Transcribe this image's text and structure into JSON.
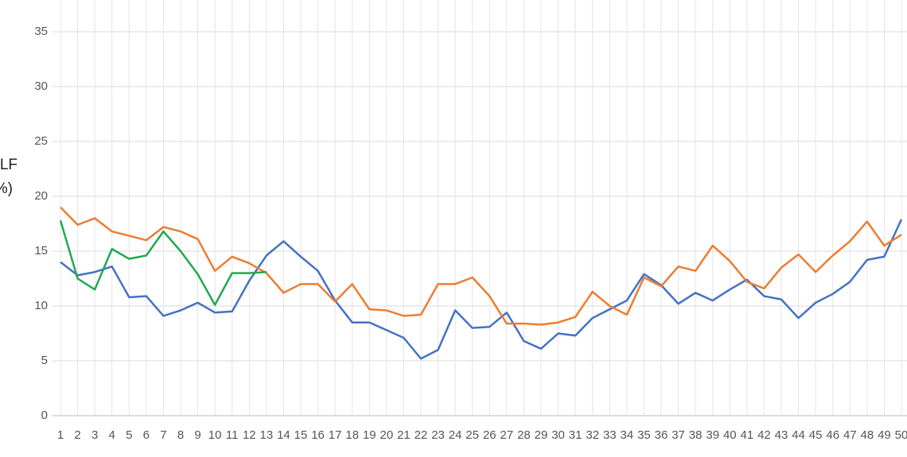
{
  "chart_data": {
    "type": "line",
    "y_label": [
      "CLF",
      "(%)"
    ],
    "categories": [
      1,
      2,
      3,
      4,
      5,
      6,
      7,
      8,
      9,
      10,
      11,
      12,
      13,
      14,
      15,
      16,
      17,
      18,
      19,
      20,
      21,
      22,
      23,
      24,
      25,
      26,
      27,
      28,
      29,
      30,
      31,
      32,
      33,
      34,
      35,
      36,
      37,
      38,
      39,
      40,
      41,
      42,
      43,
      44,
      45,
      46,
      47,
      48,
      49,
      50
    ],
    "series": [
      {
        "color": "#4472c4",
        "values": [
          14.0,
          12.8,
          13.1,
          13.6,
          10.8,
          10.9,
          9.1,
          9.6,
          10.3,
          9.4,
          9.5,
          12.3,
          14.6,
          15.9,
          14.5,
          13.2,
          10.5,
          8.5,
          8.5,
          7.8,
          7.1,
          5.2,
          6.0,
          9.6,
          8.0,
          8.1,
          9.4,
          6.8,
          6.1,
          7.5,
          7.3,
          8.9,
          9.7,
          10.5,
          12.9,
          11.9,
          10.2,
          11.2,
          10.5,
          11.5,
          12.4,
          10.9,
          10.6,
          8.9,
          10.3,
          11.1,
          12.2,
          14.2,
          14.5,
          17.9
        ]
      },
      {
        "color": "#ed7d31",
        "values": [
          19.0,
          17.4,
          18.0,
          16.8,
          16.4,
          16.0,
          17.2,
          16.8,
          16.1,
          13.2,
          14.5,
          13.9,
          13.0,
          11.2,
          12.0,
          12.0,
          10.4,
          12.0,
          9.7,
          9.6,
          9.1,
          9.2,
          12.0,
          12.0,
          12.6,
          10.9,
          8.4,
          8.4,
          8.3,
          8.5,
          9.0,
          11.3,
          10.0,
          9.2,
          12.6,
          11.8,
          13.6,
          13.2,
          15.5,
          14.1,
          12.2,
          11.6,
          13.5,
          14.7,
          13.1,
          14.6,
          15.9,
          17.7,
          15.5,
          16.5
        ]
      },
      {
        "color": "#22a84f",
        "values": [
          17.8,
          12.5,
          11.5,
          15.2,
          14.3,
          14.6,
          16.8,
          15.0,
          12.9,
          10.1,
          13.0,
          13.0,
          13.1,
          null,
          null,
          null,
          null,
          null,
          null,
          null,
          null,
          null,
          null,
          null,
          null,
          null,
          null,
          null,
          null,
          null,
          null,
          null,
          null,
          null,
          null,
          null,
          null,
          null,
          null,
          null,
          null,
          null,
          null,
          null,
          null,
          null,
          null,
          null,
          null,
          null
        ]
      }
    ],
    "ylim": [
      0,
      35
    ],
    "yticks": [
      0,
      5,
      10,
      15,
      20,
      25,
      30,
      35
    ],
    "grid": true
  }
}
